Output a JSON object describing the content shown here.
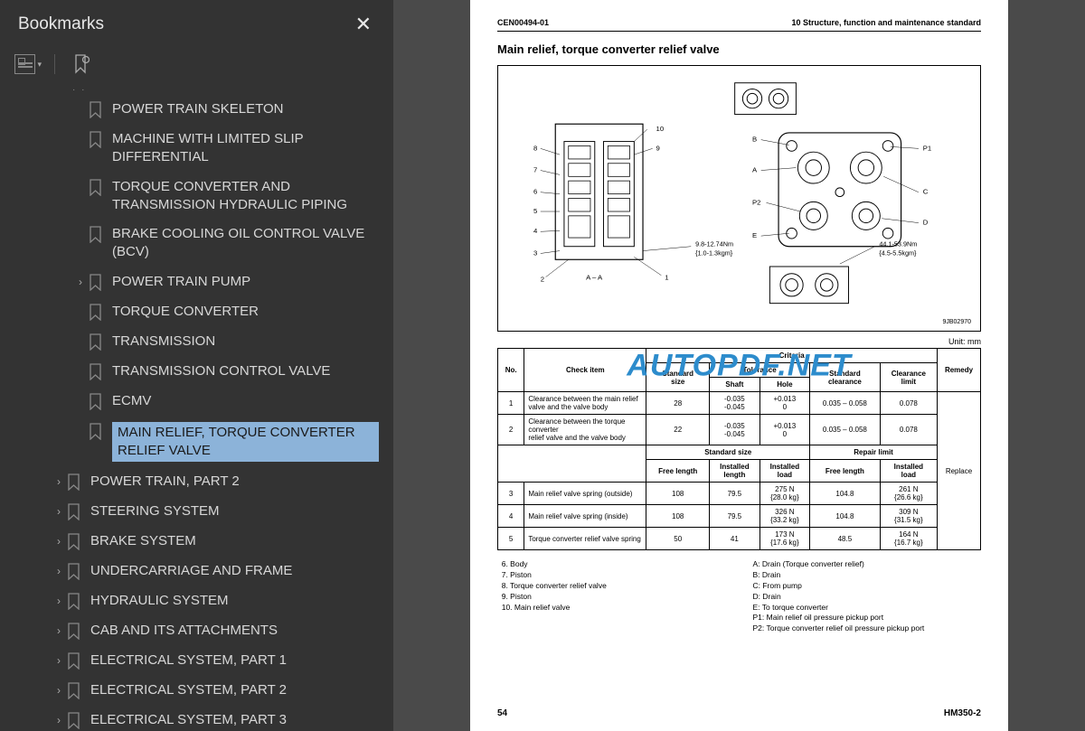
{
  "sidebar": {
    "title": "Bookmarks",
    "items": [
      {
        "label": "POWER TRAIN SKELETON",
        "indent": 2,
        "expandable": false,
        "active": false
      },
      {
        "label": "MACHINE WITH LIMITED SLIP DIFFERENTIAL",
        "indent": 2,
        "expandable": false,
        "active": false
      },
      {
        "label": "TORQUE CONVERTER AND TRANSMISSION HYDRAULIC PIPING",
        "indent": 2,
        "expandable": false,
        "active": false
      },
      {
        "label": "BRAKE COOLING OIL CONTROL VALVE (BCV)",
        "indent": 2,
        "expandable": false,
        "active": false
      },
      {
        "label": "POWER TRAIN PUMP",
        "indent": 2,
        "expandable": true,
        "active": false
      },
      {
        "label": "TORQUE CONVERTER",
        "indent": 2,
        "expandable": false,
        "active": false
      },
      {
        "label": "TRANSMISSION",
        "indent": 2,
        "expandable": false,
        "active": false
      },
      {
        "label": "TRANSMISSION CONTROL VALVE",
        "indent": 2,
        "expandable": false,
        "active": false
      },
      {
        "label": "ECMV",
        "indent": 2,
        "expandable": false,
        "active": false
      },
      {
        "label": "MAIN RELIEF, TORQUE CONVERTER RELIEF VALVE",
        "indent": 2,
        "expandable": false,
        "active": true
      },
      {
        "label": "POWER TRAIN, PART 2",
        "indent": 1,
        "expandable": true,
        "active": false
      },
      {
        "label": "STEERING SYSTEM",
        "indent": 1,
        "expandable": true,
        "active": false
      },
      {
        "label": "BRAKE SYSTEM",
        "indent": 1,
        "expandable": true,
        "active": false
      },
      {
        "label": "UNDERCARRIAGE AND FRAME",
        "indent": 1,
        "expandable": true,
        "active": false
      },
      {
        "label": "HYDRAULIC SYSTEM",
        "indent": 1,
        "expandable": true,
        "active": false
      },
      {
        "label": "CAB AND ITS ATTACHMENTS",
        "indent": 1,
        "expandable": true,
        "active": false
      },
      {
        "label": "ELECTRICAL SYSTEM, PART 1",
        "indent": 1,
        "expandable": true,
        "active": false
      },
      {
        "label": "ELECTRICAL SYSTEM, PART 2",
        "indent": 1,
        "expandable": true,
        "active": false
      },
      {
        "label": "ELECTRICAL SYSTEM, PART 3",
        "indent": 1,
        "expandable": true,
        "active": false
      }
    ]
  },
  "page": {
    "header_left": "CEN00494-01",
    "header_right": "10 Structure, function and maintenance standard",
    "title": "Main relief, torque converter relief valve",
    "unit": "Unit: mm",
    "diagram": {
      "torque1": "9.8-12.74Nm",
      "torque1b": "{1.0-1.3kgm}",
      "torque2": "44.1-53.9Nm",
      "torque2b": "{4.5-5.5kgm}",
      "section_label": "A - A",
      "ports": [
        "B",
        "A",
        "P2",
        "E",
        "P1",
        "C",
        "D"
      ],
      "callouts": [
        "1",
        "2",
        "3",
        "4",
        "5",
        "6",
        "7",
        "8",
        "9",
        "10"
      ],
      "code": "9JB02970"
    },
    "table": {
      "headers": {
        "no": "No.",
        "check": "Check item",
        "criteria": "Criteria",
        "remedy": "Remedy",
        "std_size": "Standard size",
        "tolerance": "Tolerance",
        "shaft": "Shaft",
        "hole": "Hole",
        "std_clear": "Standard clearance",
        "clear_limit": "Clearance limit",
        "free_len": "Free length",
        "inst_len": "Installed length",
        "inst_load": "Installed load",
        "repair": "Repair limit"
      },
      "rows": [
        {
          "no": "1",
          "check": "Clearance between the main relief valve and the valve body",
          "std_size": "28",
          "shaft": "-0.035\n-0.045",
          "hole": "+0.013\n0",
          "std_clear": "0.035 – 0.058",
          "limit": "0.078"
        },
        {
          "no": "2",
          "check": "Clearance between the torque converter\nrelief valve and the valve body",
          "std_size": "22",
          "shaft": "-0.035\n-0.045",
          "hole": "+0.013\n0",
          "std_clear": "0.035 – 0.058",
          "limit": "0.078"
        },
        {
          "no": "3",
          "check": "Main relief valve spring (outside)",
          "free": "108",
          "inst_len": "79.5",
          "inst_load": "275 N\n{28.0 kg}",
          "r_free": "104.8",
          "r_load": "261 N\n{26.6 kg}"
        },
        {
          "no": "4",
          "check": "Main relief valve spring (inside)",
          "free": "108",
          "inst_len": "79.5",
          "inst_load": "326 N\n{33.2 kg}",
          "r_free": "104.8",
          "r_load": "309 N\n{31.5 kg}"
        },
        {
          "no": "5",
          "check": "Torque converter relief valve spring",
          "free": "50",
          "inst_len": "41",
          "inst_load": "173 N\n{17.6 kg}",
          "r_free": "48.5",
          "r_load": "164 N\n{16.7 kg}"
        }
      ],
      "remedy": "Replace"
    },
    "legend_left": [
      "6. Body",
      "7. Piston",
      "8. Torque converter relief valve",
      "9. Piston",
      "10. Main relief valve"
    ],
    "legend_right": [
      "A:  Drain (Torque converter relief)",
      "B:  Drain",
      "C:  From pump",
      "D:  Drain",
      "E:  To torque converter",
      "P1: Main relief oil pressure pickup port",
      "P2: Torque converter relief oil pressure pickup port"
    ],
    "page_num": "54",
    "model": "HM350-2"
  },
  "watermark": "AUTOPDF.NET",
  "colors": {
    "sidebar_bg": "#333333",
    "active_bg": "#8cb3d9",
    "watermark": "#2d8ccc",
    "content_bg": "#4a4a4a"
  }
}
